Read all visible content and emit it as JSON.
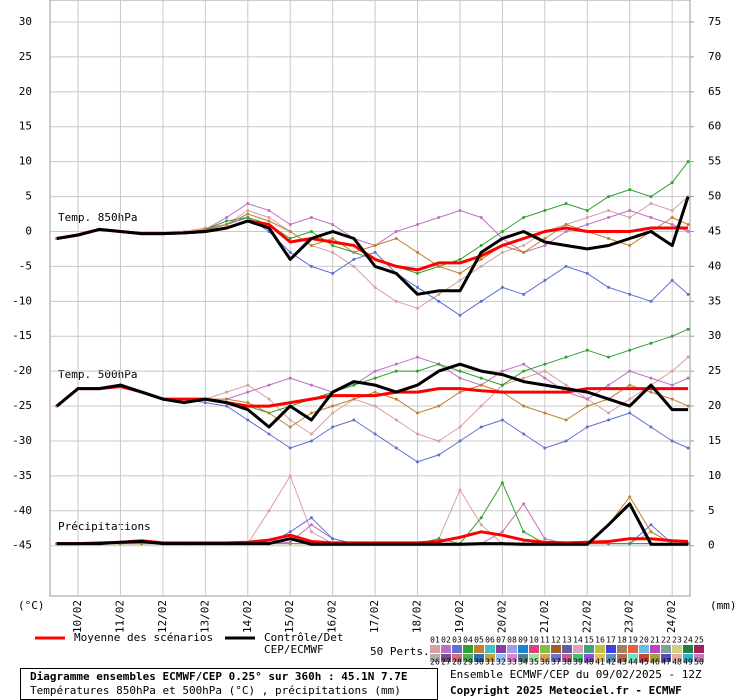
{
  "chart_data": {
    "type": "line",
    "ylabel": "(°C)",
    "y2label": "(mm)",
    "annotations": [
      "Temp. 850hPa",
      "Temp. 500hPa",
      "Précipitations"
    ],
    "x": [
      9.5,
      10,
      10.5,
      11,
      11.5,
      12,
      12.5,
      13,
      13.5,
      14,
      14.5,
      15,
      15.5,
      16,
      16.5,
      17,
      17.5,
      18,
      18.5,
      19,
      19.5,
      20,
      20.5,
      21,
      21.5,
      22,
      22.5,
      23,
      23.5,
      24,
      24.375
    ],
    "xlim": [
      9.34,
      24.42
    ],
    "xticks": [
      {
        "value": 10,
        "label": "10/02"
      },
      {
        "value": 11,
        "label": "11/02"
      },
      {
        "value": 12,
        "label": "12/02"
      },
      {
        "value": 13,
        "label": "13/02"
      },
      {
        "value": 14,
        "label": "14/02"
      },
      {
        "value": 15,
        "label": "15/02"
      },
      {
        "value": 16,
        "label": "16/02"
      },
      {
        "value": 17,
        "label": "17/02"
      },
      {
        "value": 18,
        "label": "18/02"
      },
      {
        "value": 19,
        "label": "19/02"
      },
      {
        "value": 20,
        "label": "20/02"
      },
      {
        "value": 21,
        "label": "21/02"
      },
      {
        "value": 22,
        "label": "22/02"
      },
      {
        "value": 23,
        "label": "23/02"
      },
      {
        "value": 24,
        "label": "24/02"
      }
    ],
    "ylim": [
      -52.2,
      33.15
    ],
    "yticks": [
      -45,
      -40,
      -35,
      -30,
      -25,
      -20,
      -15,
      -10,
      -5,
      0,
      5,
      10,
      15,
      20,
      25,
      30
    ],
    "y2lim": [
      -7.2,
      78.15
    ],
    "y2ticks": [
      0,
      5,
      10,
      15,
      20,
      25,
      30,
      35,
      40,
      45,
      50,
      55,
      60,
      65,
      70,
      75
    ],
    "grid": true,
    "precip_axis": "y2",
    "series": [
      {
        "name": "Moyenne des scénarios",
        "color": "#ff0000",
        "t850": [
          -1,
          -0.5,
          0.3,
          0,
          -0.3,
          -0.3,
          -0.2,
          0,
          0.5,
          1.5,
          1,
          -1.5,
          -1,
          -1.5,
          -2,
          -4,
          -5,
          -5.5,
          -4.5,
          -4.5,
          -3.5,
          -2,
          -1,
          0,
          0.5,
          0,
          0,
          0,
          0.5,
          0.5,
          0.5
        ],
        "t500": [
          -25,
          -22.5,
          -22.5,
          -22.2,
          -23,
          -24,
          -24,
          -24,
          -24.5,
          -25,
          -25,
          -24.5,
          -24,
          -23.5,
          -23.5,
          -23.5,
          -23,
          -23,
          -22.5,
          -22.5,
          -22.8,
          -23,
          -23,
          -23,
          -23,
          -22.5,
          -22.5,
          -22.5,
          -22.5,
          -22.5,
          -22.5
        ],
        "precip": [
          0.3,
          0.3,
          0.4,
          0.5,
          0.7,
          0.4,
          0.4,
          0.4,
          0.4,
          0.5,
          0.8,
          1.5,
          0.6,
          0.4,
          0.4,
          0.4,
          0.4,
          0.4,
          0.6,
          1.2,
          2,
          1.5,
          0.8,
          0.5,
          0.4,
          0.5,
          0.6,
          1,
          1,
          0.7,
          0.6
        ]
      },
      {
        "name": "Contrôle/Det CEP/ECMWF",
        "color": "#000000",
        "t850": [
          -1,
          -0.5,
          0.3,
          0,
          -0.3,
          -0.3,
          -0.2,
          0,
          0.5,
          1.5,
          0.5,
          -4,
          -1,
          0,
          -1,
          -5,
          -6,
          -9,
          -8.5,
          -8.5,
          -3,
          -1,
          0,
          -1.5,
          -2,
          -2.5,
          -2,
          -1,
          0,
          -2,
          5
        ],
        "t500": [
          -25,
          -22.5,
          -22.5,
          -22,
          -23,
          -24,
          -24.5,
          -24,
          -24.5,
          -25.5,
          -28,
          -25,
          -27,
          -23,
          -21.5,
          -22,
          -23,
          -22,
          -20,
          -19,
          -20,
          -20.5,
          -21.5,
          -22,
          -22.5,
          -23,
          -24,
          -25,
          -22,
          -25.5,
          -25.5
        ],
        "precip": [
          0.3,
          0.3,
          0.3,
          0.5,
          0.6,
          0.3,
          0.3,
          0.3,
          0.3,
          0.3,
          0.3,
          1,
          0.2,
          0.2,
          0.2,
          0.2,
          0.2,
          0.2,
          0.2,
          0.2,
          0.3,
          0.3,
          0.2,
          0.2,
          0.2,
          0.2,
          3,
          6,
          0.2,
          0.2,
          0.2
        ]
      }
    ],
    "perturbations": {
      "label": "50 Perts.",
      "members": [
        {
          "name": "01",
          "color": "#d8a0a0",
          "t850": [
            -1,
            -0.5,
            0.3,
            0,
            -0.3,
            -0.3,
            0,
            0.5,
            1,
            3,
            2,
            0,
            -2,
            -3,
            -5,
            -8,
            -10,
            -11,
            -9,
            -7,
            -5,
            -3,
            -2,
            0,
            1,
            2,
            3,
            2,
            4,
            3,
            5
          ],
          "t500": [
            -25,
            -22.5,
            -22.5,
            -22,
            -23,
            -24,
            -24,
            -24,
            -23,
            -22,
            -24,
            -27,
            -29,
            -26,
            -24,
            -25,
            -27,
            -29,
            -30,
            -28,
            -25,
            -22,
            -21,
            -20,
            -22,
            -24,
            -26,
            -24,
            -22,
            -20,
            -18
          ],
          "precip": [
            0.3,
            0.3,
            0.3,
            0.3,
            0.3,
            0.3,
            0.3,
            0.3,
            0.3,
            0.3,
            5,
            10,
            2,
            0.3,
            0.3,
            0.3,
            0.3,
            0.3,
            1,
            8,
            3,
            0.3,
            0.3,
            0.3,
            0.3,
            0.3,
            0.3,
            0.3,
            2,
            0.3,
            0.3
          ]
        },
        {
          "name": "02",
          "color": "#c070c0",
          "t850": [
            -1,
            -0.5,
            0.3,
            0,
            -0.3,
            -0.3,
            -0.2,
            0.3,
            2,
            4,
            3,
            1,
            2,
            1,
            -1,
            -2,
            0,
            1,
            2,
            3,
            2,
            -1,
            -3,
            -2,
            0,
            1,
            2,
            3,
            2,
            1,
            0
          ],
          "t500": [
            -25,
            -22.5,
            -22.5,
            -22,
            -23,
            -24,
            -24.5,
            -24,
            -24,
            -23,
            -22,
            -21,
            -22,
            -23,
            -22,
            -20,
            -19,
            -18,
            -19,
            -21,
            -22,
            -20,
            -19,
            -21,
            -23,
            -24,
            -22,
            -20,
            -21,
            -22,
            -21
          ],
          "precip": [
            0.3,
            0.3,
            0.3,
            0.3,
            0.3,
            0.3,
            0.3,
            0.3,
            0.3,
            0.3,
            0.3,
            0.5,
            3,
            1,
            0.3,
            0.3,
            0.3,
            0.3,
            0.3,
            0.3,
            0.3,
            2,
            6,
            1,
            0.3,
            0.3,
            0.3,
            0.3,
            0.3,
            0.3,
            0.3
          ]
        },
        {
          "name": "03",
          "color": "#6070d0",
          "t850": [
            -1,
            -0.5,
            0.3,
            0,
            -0.3,
            -0.3,
            -0.2,
            0.2,
            1,
            2,
            0,
            -3,
            -5,
            -6,
            -4,
            -3,
            -6,
            -8,
            -10,
            -12,
            -10,
            -8,
            -9,
            -7,
            -5,
            -6,
            -8,
            -9,
            -10,
            -7,
            -9
          ],
          "t500": [
            -25,
            -22.5,
            -22.5,
            -22,
            -23,
            -24,
            -24,
            -24.5,
            -25,
            -27,
            -29,
            -31,
            -30,
            -28,
            -27,
            -29,
            -31,
            -33,
            -32,
            -30,
            -28,
            -27,
            -29,
            -31,
            -30,
            -28,
            -27,
            -26,
            -28,
            -30,
            -31
          ],
          "precip": [
            0.3,
            0.3,
            0.3,
            0.3,
            0.3,
            0.3,
            0.3,
            0.3,
            0.3,
            0.3,
            0.3,
            2,
            4,
            1,
            0.3,
            0.3,
            0.3,
            0.3,
            0.3,
            0.3,
            0.3,
            0.3,
            0.3,
            0.3,
            0.3,
            0.3,
            0.3,
            0.3,
            3,
            0.3,
            0.3
          ]
        },
        {
          "name": "04",
          "color": "#30a030",
          "t850": [
            -1,
            -0.5,
            0.3,
            0,
            -0.3,
            -0.3,
            -0.2,
            0.3,
            1.5,
            2,
            1,
            -1,
            0,
            -2,
            -3,
            -4,
            -5,
            -6,
            -5,
            -4,
            -2,
            0,
            2,
            3,
            4,
            3,
            5,
            6,
            5,
            7,
            10
          ],
          "t500": [
            -25,
            -22.5,
            -22.5,
            -22,
            -23,
            -24,
            -24,
            -24,
            -24.5,
            -25,
            -26,
            -25,
            -24,
            -23,
            -22,
            -21,
            -20,
            -20,
            -19,
            -20,
            -21,
            -22,
            -20,
            -19,
            -18,
            -17,
            -18,
            -17,
            -16,
            -15,
            -14
          ],
          "precip": [
            0.3,
            0.3,
            0.3,
            0.3,
            0.3,
            0.3,
            0.3,
            0.3,
            0.3,
            0.3,
            0.3,
            0.3,
            0.3,
            0.3,
            0.3,
            0.3,
            0.3,
            0.3,
            1,
            0.3,
            4,
            9,
            2,
            0.3,
            0.3,
            0.3,
            0.3,
            0.3,
            0.3,
            0.3,
            0.3
          ]
        },
        {
          "name": "05",
          "color": "#c08030",
          "t850": [
            -1,
            -0.5,
            0.3,
            0,
            -0.3,
            -0.3,
            -0.2,
            0.3,
            1,
            2.5,
            1.5,
            0,
            -2,
            -1,
            -3,
            -2,
            -1,
            -3,
            -5,
            -6,
            -4,
            -2,
            -3,
            -1,
            1,
            0,
            -1,
            -2,
            0,
            2,
            1
          ],
          "t500": [
            -25,
            -22.5,
            -22.5,
            -22,
            -23,
            -24,
            -24,
            -24,
            -24,
            -24.5,
            -26,
            -28,
            -26,
            -25,
            -24,
            -23,
            -24,
            -26,
            -25,
            -23,
            -22,
            -23,
            -25,
            -26,
            -27,
            -25,
            -24,
            -22,
            -23,
            -24,
            -25
          ],
          "precip": [
            0.3,
            0.3,
            0.3,
            0.3,
            0.3,
            0.3,
            0.3,
            0.3,
            0.3,
            0.3,
            0.3,
            0.3,
            0.3,
            0.3,
            0.3,
            0.3,
            0.3,
            0.3,
            0.3,
            0.3,
            0.3,
            0.3,
            0.3,
            0.3,
            0.3,
            0.3,
            3,
            7,
            2,
            0.3,
            0.3
          ]
        },
        {
          "name": "06",
          "color": "#40c0c0"
        },
        {
          "name": "07",
          "color": "#8040a0"
        },
        {
          "name": "08",
          "color": "#a0a0e0"
        },
        {
          "name": "09",
          "color": "#2080d0"
        },
        {
          "name": "10",
          "color": "#e04080"
        },
        {
          "name": "11",
          "color": "#80c040"
        },
        {
          "name": "12",
          "color": "#a06020"
        },
        {
          "name": "13",
          "color": "#6060a0"
        },
        {
          "name": "14",
          "color": "#e0a0c0"
        },
        {
          "name": "15",
          "color": "#40a080"
        },
        {
          "name": "16",
          "color": "#c0c040"
        },
        {
          "name": "17",
          "color": "#4040e0"
        },
        {
          "name": "18",
          "color": "#a08060"
        },
        {
          "name": "19",
          "color": "#e06040"
        },
        {
          "name": "20",
          "color": "#60c0e0"
        },
        {
          "name": "21",
          "color": "#c040c0"
        },
        {
          "name": "22",
          "color": "#80a0a0"
        },
        {
          "name": "23",
          "color": "#d0d080"
        },
        {
          "name": "24",
          "color": "#208040"
        },
        {
          "name": "25",
          "color": "#a02060"
        },
        {
          "name": "26",
          "color": "#b0b0b0"
        },
        {
          "name": "27",
          "color": "#705090"
        },
        {
          "name": "28",
          "color": "#d07070"
        },
        {
          "name": "29",
          "color": "#50b050"
        },
        {
          "name": "30",
          "color": "#3070b0"
        },
        {
          "name": "31",
          "color": "#c0a040"
        },
        {
          "name": "32",
          "color": "#90c0f0"
        },
        {
          "name": "33",
          "color": "#e080e0"
        },
        {
          "name": "34",
          "color": "#508080"
        },
        {
          "name": "35",
          "color": "#a0e0a0"
        },
        {
          "name": "36",
          "color": "#d0a060"
        },
        {
          "name": "37",
          "color": "#7070d0"
        },
        {
          "name": "38",
          "color": "#c06090"
        },
        {
          "name": "39",
          "color": "#40c070"
        },
        {
          "name": "40",
          "color": "#9050d0"
        },
        {
          "name": "41",
          "color": "#e0c060"
        },
        {
          "name": "42",
          "color": "#6090c0"
        },
        {
          "name": "43",
          "color": "#b07050"
        },
        {
          "name": "44",
          "color": "#70e0c0"
        },
        {
          "name": "45",
          "color": "#d04040"
        },
        {
          "name": "46",
          "color": "#a0a040"
        },
        {
          "name": "47",
          "color": "#5050b0"
        },
        {
          "name": "48",
          "color": "#e0b0a0"
        },
        {
          "name": "49",
          "color": "#30b0d0"
        },
        {
          "name": "50",
          "color": "#c080b0"
        }
      ]
    }
  },
  "footer": {
    "title": "Diagramme ensembles ECMWF/CEP 0.25° sur 360h : 45.1N 7.7E",
    "subtitle": "Températures 850hPa et 500hPa (°C) , précipitations (mm)",
    "run": "Ensemble ECMWF/CEP du 09/02/2025 - 12Z",
    "copyright": "Copyright 2025 Meteociel.fr - ECMWF"
  }
}
